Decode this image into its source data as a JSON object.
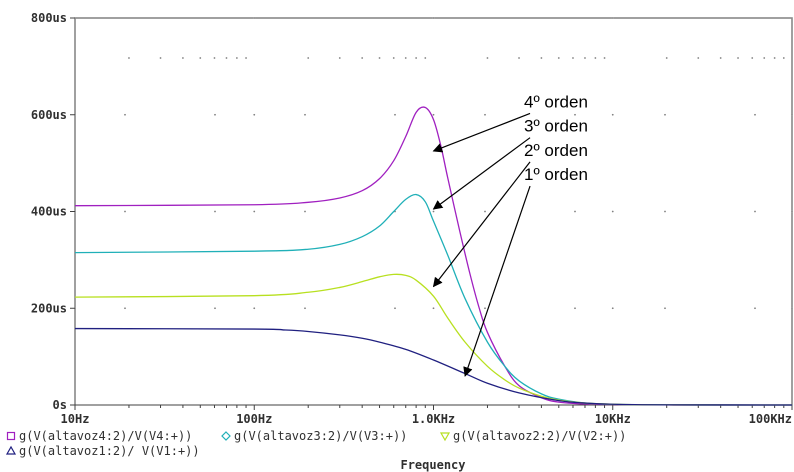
{
  "chart_data": {
    "type": "line",
    "xscale": "log",
    "xlim": [
      10,
      100000
    ],
    "ylim": [
      0,
      0.0008
    ],
    "grid": true,
    "xlabel": "Frequency",
    "xtick_labels": [
      {
        "v": 10,
        "label": "10Hz"
      },
      {
        "v": 100,
        "label": "100Hz"
      },
      {
        "v": 1000,
        "label": "1.0KHz"
      },
      {
        "v": 10000,
        "label": "10KHz"
      },
      {
        "v": 100000,
        "label": "100KHz"
      }
    ],
    "ytick_labels": [
      {
        "v": 0,
        "label": "0s"
      },
      {
        "v": 0.0002,
        "label": "200us"
      },
      {
        "v": 0.0004,
        "label": "400us"
      },
      {
        "v": 0.0006,
        "label": "600us"
      },
      {
        "v": 0.0008,
        "label": "800us"
      }
    ],
    "series": [
      {
        "name": "g(V(altavoz4:2)/V(V4:+))",
        "color": "#a020c0",
        "marker": "square",
        "x": [
          10,
          100,
          200,
          300,
          400,
          500,
          600,
          700,
          800,
          900,
          1000,
          1100,
          1200,
          1400,
          1600,
          1800,
          2000,
          2500,
          3000,
          4000,
          5000,
          7000,
          10000,
          15000,
          20000,
          30000,
          100000
        ],
        "y": [
          0.000412,
          0.000414,
          0.000419,
          0.000428,
          0.000443,
          0.000468,
          0.000505,
          0.000555,
          0.000605,
          0.000615,
          0.00059,
          0.000535,
          0.00047,
          0.00036,
          0.00027,
          0.0002,
          0.00015,
          8e-05,
          4e-05,
          1.5e-05,
          6e-06,
          2e-06,
          1e-06,
          5e-07,
          2e-07,
          1e-07,
          0
        ]
      },
      {
        "name": "g(V(altavoz3:2)/V(V3:+))",
        "color": "#20b0b8",
        "marker": "diamond",
        "x": [
          10,
          100,
          200,
          300,
          400,
          500,
          600,
          700,
          800,
          900,
          1000,
          1200,
          1500,
          2000,
          2500,
          3000,
          4000,
          5000,
          7000,
          10000,
          15000,
          20000,
          30000,
          100000
        ],
        "y": [
          0.000315,
          0.000318,
          0.000322,
          0.000332,
          0.000348,
          0.00037,
          0.0004,
          0.000425,
          0.000435,
          0.00042,
          0.00038,
          0.00031,
          0.00022,
          0.00013,
          8e-05,
          5e-05,
          2.3e-05,
          1.2e-05,
          4e-06,
          1.5e-06,
          5e-07,
          3e-07,
          1e-07,
          0
        ]
      },
      {
        "name": "g(V(altavoz2:2)/V(V2:+))",
        "color": "#b8e020",
        "marker": "triangle-down",
        "x": [
          10,
          100,
          200,
          300,
          400,
          500,
          600,
          700,
          800,
          1000,
          1200,
          1500,
          2000,
          2500,
          3000,
          4000,
          5000,
          7000,
          10000,
          15000,
          20000,
          30000,
          100000
        ],
        "y": [
          0.000223,
          0.000226,
          0.000233,
          0.000243,
          0.000255,
          0.000265,
          0.00027,
          0.000268,
          0.000258,
          0.000225,
          0.00018,
          0.00013,
          8e-05,
          5.2e-05,
          3.5e-05,
          1.8e-05,
          1e-05,
          4e-06,
          1.5e-06,
          5e-07,
          2e-07,
          1e-07,
          0
        ]
      },
      {
        "name": "g(V(altavoz1:2)/ V(V1:+))",
        "color": "#202080",
        "marker": "triangle-up",
        "x": [
          10,
          100,
          150,
          200,
          300,
          400,
          500,
          700,
          1000,
          1500,
          2000,
          3000,
          5000,
          7000,
          10000,
          20000,
          100000
        ],
        "y": [
          0.000158,
          0.000157,
          0.000155,
          0.000152,
          0.000145,
          0.000138,
          0.00013,
          0.000115,
          9.3e-05,
          6.5e-05,
          4.5e-05,
          2.5e-05,
          9e-06,
          4e-06,
          1.5e-06,
          3e-07,
          0
        ]
      }
    ],
    "annotations": [
      {
        "text": "4º orden",
        "text_at": [
          3200,
          0.000615
        ],
        "arrow_to": [
          1000,
          0.000525
        ]
      },
      {
        "text": "3º orden",
        "text_at": [
          3200,
          0.000565
        ],
        "arrow_to": [
          1000,
          0.000405
        ]
      },
      {
        "text": "2º orden",
        "text_at": [
          3200,
          0.000515
        ],
        "arrow_to": [
          1000,
          0.000245
        ]
      },
      {
        "text": "1º orden",
        "text_at": [
          3200,
          0.000465
        ],
        "arrow_to": [
          1500,
          6e-05
        ]
      }
    ]
  }
}
